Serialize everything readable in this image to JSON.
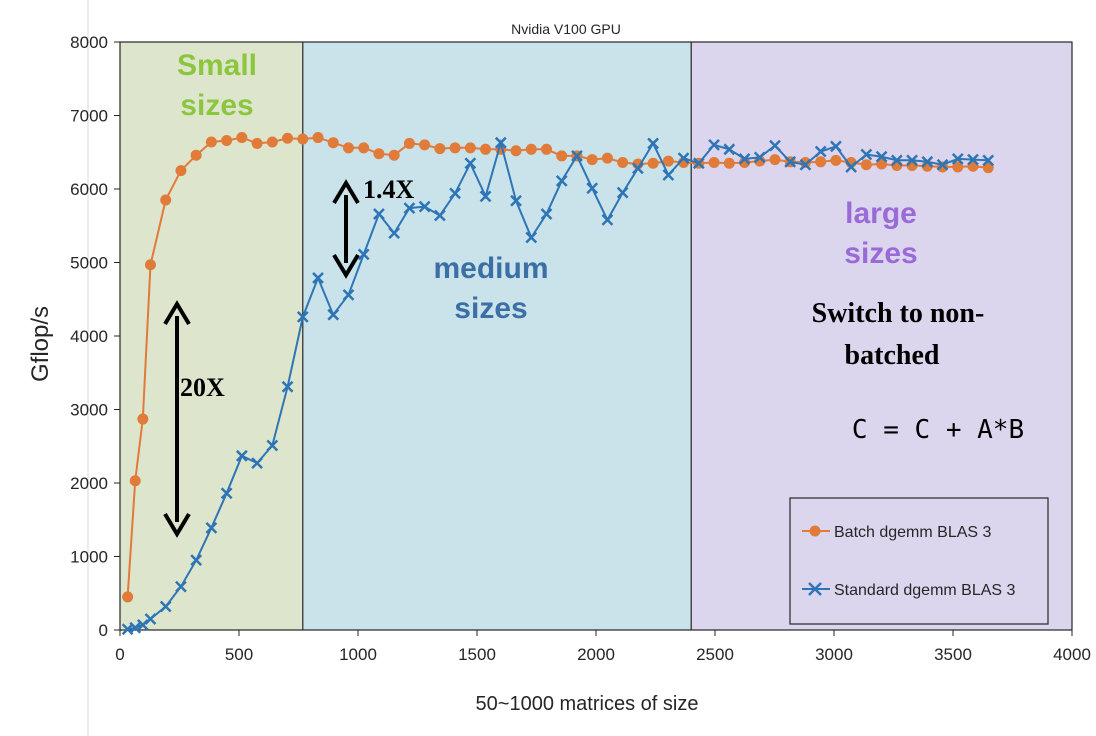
{
  "chart_data": {
    "type": "line",
    "title": "Nvidia V100 GPU",
    "xlabel": "50~1000 matrices of size",
    "ylabel": "Gflop/s",
    "xlim": [
      0,
      4000
    ],
    "ylim": [
      0,
      8000
    ],
    "x_ticks": [
      "0",
      "500",
      "1000",
      "1500",
      "2000",
      "2500",
      "3000",
      "3500",
      "4000"
    ],
    "y_ticks": [
      "0",
      "1000",
      "2000",
      "3000",
      "4000",
      "5000",
      "6000",
      "7000",
      "8000"
    ],
    "grid": false,
    "legend_position": "bottom-right",
    "regions": [
      {
        "label_lines": [
          "Small",
          "sizes"
        ],
        "x_start": 0,
        "x_end": 768,
        "fill": "#dde6cc",
        "label_color": "#8cc63f"
      },
      {
        "label_lines": [
          "medium",
          "sizes"
        ],
        "x_start": 768,
        "x_end": 2400,
        "fill": "#cae2ea",
        "label_color": "#3b6fa5"
      },
      {
        "label_lines": [
          "large",
          "sizes"
        ],
        "x_start": 2400,
        "x_end": 4000,
        "fill": "#dcd5ee",
        "label_color": "#9a6bd8"
      }
    ],
    "annotations": {
      "gap_small": "20X",
      "gap_medium": "1.4X",
      "switch_lines": [
        "Switch to non-",
        "batched"
      ],
      "formula": "C = C + A*B"
    },
    "series": [
      {
        "name": "Batch dgemm BLAS 3",
        "color": "#e07b39",
        "marker": "circle",
        "x": [
          32,
          64,
          96,
          128,
          192,
          256,
          320,
          384,
          448,
          512,
          576,
          640,
          704,
          768,
          832,
          896,
          960,
          1024,
          1088,
          1152,
          1216,
          1280,
          1344,
          1408,
          1472,
          1536,
          1600,
          1664,
          1728,
          1792,
          1856,
          1920,
          1984,
          2048,
          2112,
          2176,
          2240,
          2304,
          2368,
          2432,
          2496,
          2560,
          2624,
          2688,
          2752,
          2816,
          2880,
          2944,
          3008,
          3072,
          3136,
          3200,
          3264,
          3328,
          3392,
          3456,
          3520,
          3584,
          3648
        ],
        "values": [
          450,
          2030,
          2870,
          4970,
          5850,
          6250,
          6460,
          6640,
          6660,
          6700,
          6620,
          6640,
          6690,
          6680,
          6700,
          6630,
          6560,
          6560,
          6480,
          6460,
          6620,
          6600,
          6550,
          6560,
          6560,
          6540,
          6540,
          6520,
          6540,
          6540,
          6450,
          6450,
          6400,
          6420,
          6360,
          6340,
          6350,
          6380,
          6360,
          6350,
          6360,
          6350,
          6360,
          6380,
          6400,
          6370,
          6360,
          6370,
          6390,
          6360,
          6330,
          6340,
          6320,
          6320,
          6310,
          6300,
          6300,
          6310,
          6290
        ]
      },
      {
        "name": "Standard dgemm BLAS 3",
        "color": "#2e75b6",
        "marker": "x",
        "x": [
          32,
          64,
          96,
          128,
          192,
          256,
          320,
          384,
          448,
          512,
          576,
          640,
          704,
          768,
          832,
          896,
          960,
          1024,
          1088,
          1152,
          1216,
          1280,
          1344,
          1408,
          1472,
          1536,
          1600,
          1664,
          1728,
          1792,
          1856,
          1920,
          1984,
          2048,
          2112,
          2176,
          2240,
          2304,
          2368,
          2432,
          2496,
          2560,
          2624,
          2688,
          2752,
          2816,
          2880,
          2944,
          3008,
          3072,
          3136,
          3200,
          3264,
          3328,
          3392,
          3456,
          3520,
          3584,
          3648
        ],
        "values": [
          10,
          30,
          70,
          150,
          320,
          590,
          950,
          1390,
          1860,
          2370,
          2270,
          2510,
          3310,
          4260,
          4790,
          4290,
          4560,
          5110,
          5660,
          5400,
          5740,
          5760,
          5640,
          5940,
          6350,
          5900,
          6630,
          5840,
          5340,
          5660,
          6110,
          6450,
          6010,
          5580,
          5950,
          6280,
          6620,
          6190,
          6420,
          6350,
          6600,
          6540,
          6410,
          6430,
          6590,
          6370,
          6330,
          6510,
          6580,
          6300,
          6470,
          6440,
          6390,
          6390,
          6370,
          6330,
          6410,
          6400,
          6390
        ]
      }
    ]
  }
}
